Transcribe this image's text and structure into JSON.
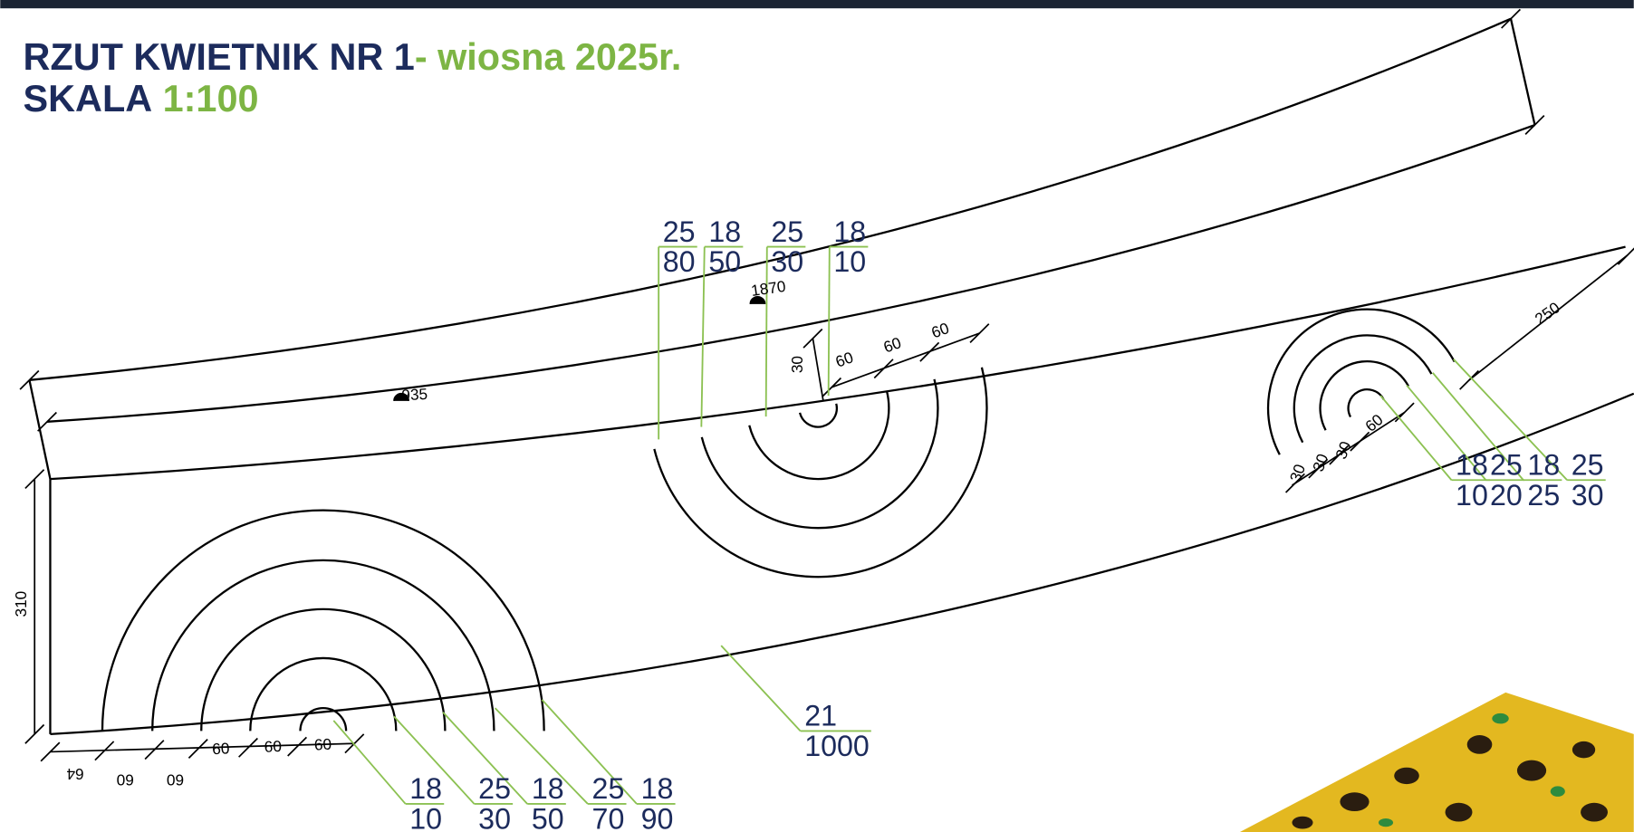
{
  "header": {
    "title": "RZUT KWIETNIK NR 1",
    "title_suffix": "- wiosna 2025r.",
    "scale_label": "SKALA",
    "scale_value": "1:100"
  },
  "dimension_labels": [
    "935",
    "1870",
    "310",
    "250",
    "30",
    "60",
    "60",
    "60",
    "64",
    "60",
    "60",
    "60",
    "60",
    "60",
    "30",
    "30",
    "30",
    "60"
  ],
  "plant_labels": [
    {
      "top": "25",
      "bottom": "80"
    },
    {
      "top": "18",
      "bottom": "50"
    },
    {
      "top": "25",
      "bottom": "30"
    },
    {
      "top": "18",
      "bottom": "10"
    },
    {
      "top": "18",
      "bottom": "10"
    },
    {
      "top": "25",
      "bottom": "20"
    },
    {
      "top": "18",
      "bottom": "25"
    },
    {
      "top": "25",
      "bottom": "30"
    },
    {
      "top": "18",
      "bottom": "10"
    },
    {
      "top": "25",
      "bottom": "30"
    },
    {
      "top": "18",
      "bottom": "50"
    },
    {
      "top": "25",
      "bottom": "70"
    },
    {
      "top": "18",
      "bottom": "90"
    },
    {
      "top": "21",
      "bottom": "1000"
    }
  ]
}
